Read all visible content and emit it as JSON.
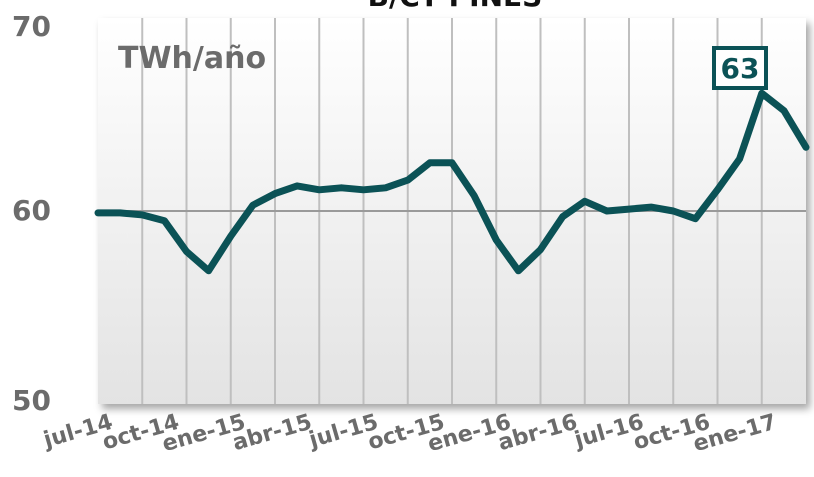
{
  "chart_data": {
    "type": "line",
    "title": "B/CT PINES",
    "unit_label": "TWh/año",
    "ylim": [
      50,
      70
    ],
    "y_ticks": [
      "70",
      "60",
      "50"
    ],
    "x_tick_labels": [
      "jul-14",
      "oct-14",
      "ene-15",
      "abr-15",
      "jul-15",
      "oct-15",
      "ene-16",
      "abr-16",
      "jul-16",
      "oct-16",
      "ene-17"
    ],
    "x": [
      "jul-14",
      "ago-14",
      "sep-14",
      "oct-14",
      "nov-14",
      "dic-14",
      "ene-15",
      "feb-15",
      "mar-15",
      "abr-15",
      "may-15",
      "jun-15",
      "jul-15",
      "ago-15",
      "sep-15",
      "oct-15",
      "nov-15",
      "dic-15",
      "ene-16",
      "feb-16",
      "mar-16",
      "abr-16",
      "may-16",
      "jun-16",
      "jul-16",
      "ago-16",
      "sep-16",
      "oct-16",
      "nov-16",
      "dic-16",
      "ene-17",
      "feb-17",
      "mar-17"
    ],
    "series": [
      {
        "values": [
          59.9,
          59.9,
          59.8,
          59.5,
          57.9,
          56.9,
          58.7,
          60.3,
          60.9,
          61.3,
          61.1,
          61.2,
          61.1,
          61.2,
          61.6,
          62.5,
          62.5,
          60.8,
          58.5,
          56.9,
          58.0,
          59.7,
          60.5,
          60.0,
          60.1,
          60.2,
          60.0,
          59.6,
          61.1,
          62.7,
          66.1,
          65.2,
          63.3
        ]
      }
    ],
    "annotation": {
      "label": "63",
      "value": 63.3
    },
    "grid": true,
    "colors": {
      "line": "#0b5256",
      "grid": "#bfbfbf",
      "plot_bg_top": "#ffffff",
      "plot_bg_bottom": "#e3e3e3"
    }
  }
}
